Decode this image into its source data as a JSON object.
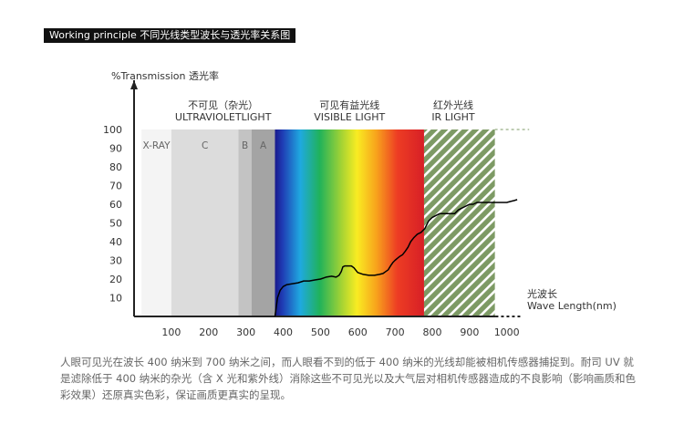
{
  "header": {
    "title": "Working principle 不同光线类型波长与透光率关系图"
  },
  "chart_data": {
    "type": "line",
    "title": "",
    "ylabel": "%Transmission 透光率",
    "xlabel_cn": "光波长",
    "xlabel": "Wave Length(nm)",
    "x_ticks": [
      100,
      200,
      300,
      400,
      500,
      600,
      700,
      800,
      900,
      1000
    ],
    "y_ticks": [
      10,
      20,
      30,
      40,
      50,
      60,
      70,
      80,
      90,
      100
    ],
    "xlim": [
      0,
      1100
    ],
    "ylim": [
      0,
      100
    ],
    "regions": [
      {
        "key": "invisible",
        "label_cn": "不可见（杂光）",
        "label_en": "ULTRAVIOLETLIGHT"
      },
      {
        "key": "visible",
        "label_cn": "可见有益光线",
        "label_en": "VISIBLE LIGHT"
      },
      {
        "key": "ir",
        "label_cn": "红外光线",
        "label_en": "IR LIGHT"
      }
    ],
    "bands": [
      {
        "key": "xray",
        "label": "X-RAY",
        "from": 20,
        "to": 100,
        "color": "#f4f4f4"
      },
      {
        "key": "uvc",
        "label": "C",
        "from": 100,
        "to": 280,
        "color": "#dcdcdc"
      },
      {
        "key": "uvb",
        "label": "B",
        "from": 280,
        "to": 315,
        "color": "#c3c3c3"
      },
      {
        "key": "uva",
        "label": "A",
        "from": 315,
        "to": 378,
        "color": "#a4a4a4"
      }
    ],
    "visible_range": [
      378,
      778
    ],
    "ir_range": [
      778,
      968
    ],
    "colors": {
      "ir_hatch": "#7d9a64",
      "curve": "#000000",
      "axis": "#222222"
    },
    "series": [
      {
        "values_x": [
          378,
          385,
          392,
          400,
          410,
          425,
          440,
          455,
          470,
          485,
          500,
          515,
          530,
          542,
          550,
          556,
          560,
          565,
          570,
          578,
          583,
          590,
          600,
          615,
          630,
          645,
          658,
          668,
          675,
          682,
          688,
          695,
          700,
          706,
          712,
          720,
          728,
          735,
          742,
          750,
          760,
          770,
          780,
          790,
          800,
          810,
          820,
          830,
          840,
          850,
          860,
          870,
          880,
          890,
          900,
          910,
          920,
          930,
          940,
          950,
          960,
          970,
          980,
          990,
          1000,
          1010,
          1020,
          1028
        ],
        "values_y": [
          0,
          10,
          14,
          16,
          17,
          17.5,
          18,
          19,
          19,
          19.5,
          20,
          21,
          21.5,
          21,
          22,
          24,
          26.5,
          27,
          27,
          27,
          27,
          26,
          23.5,
          22.5,
          22,
          22,
          22.5,
          23,
          24,
          25,
          27,
          29,
          30,
          31,
          32,
          33,
          35,
          37,
          40,
          42,
          44,
          45,
          47,
          51,
          53,
          54,
          55,
          55,
          55,
          55,
          55,
          57,
          58,
          59,
          60,
          60,
          61,
          61,
          61,
          61,
          61,
          61,
          61,
          61,
          61,
          61.5,
          62,
          62.5
        ]
      }
    ],
    "dashed_top": {
      "from": 968,
      "to": 1060,
      "y": 100
    },
    "dashed_axis": {
      "from": 970,
      "to": 1040,
      "y": 0
    }
  },
  "caption": {
    "text": "人眼可见光在波长 400 纳米到 700 纳米之间，而人眼看不到的低于 400 纳米的光线却能被相机传感器捕捉到。耐司 UV 就是滤除低于 400 纳米的杂光（含 X 光和紫外线）消除这些不可见光以及大气层对相机传感器造成的不良影响（影响画质和色彩效果）还原真实色彩，保证画质更真实的呈现。"
  }
}
